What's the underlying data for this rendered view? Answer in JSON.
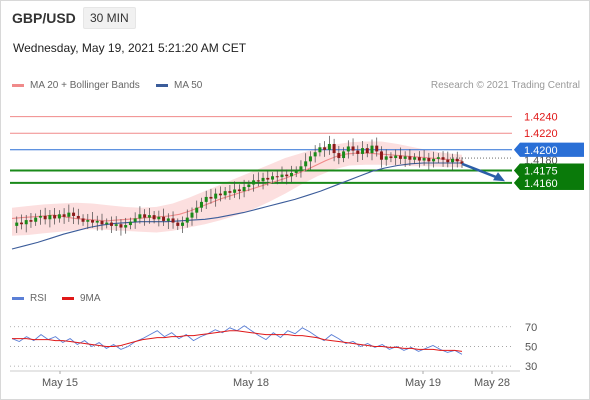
{
  "header": {
    "symbol": "GBP/USD",
    "timeframe": "30 MIN",
    "datetime": "Wednesday, May 19, 2021 5:21:20 AM CET"
  },
  "legend": {
    "main": [
      {
        "name": "MA 20 + Bollinger Bands",
        "color": "#f08a8a"
      },
      {
        "name": "MA 50",
        "color": "#3b5c9a"
      }
    ],
    "rsi": [
      {
        "name": "RSI",
        "color": "#5b7fd6"
      },
      {
        "name": "9MA",
        "color": "#e01818"
      }
    ]
  },
  "copyright": "Research © 2021 Trading Central",
  "colors": {
    "resistance": "#f08a8a",
    "resistance_text": "#e01818",
    "pivot": "#2a6fd6",
    "support": "#1a8a1a",
    "support_label_bg": "#0a7a0a",
    "arrow": "#2b5ea8",
    "candle_up": "#1a8a1a",
    "candle_down": "#8b1a1a",
    "bb_fill": "#fbd9d9"
  },
  "chart_data": [
    {
      "type": "candlestick",
      "ylim": [
        1.4045,
        1.4265
      ],
      "x_labels": [
        "May 15",
        "May 18",
        "May 19",
        "May 28"
      ],
      "levels": [
        {
          "value": 1.424,
          "label": "1.4240",
          "kind": "resistance"
        },
        {
          "value": 1.422,
          "label": "1.4220",
          "kind": "resistance"
        },
        {
          "value": 1.42,
          "label": "1.4200",
          "kind": "pivot"
        },
        {
          "value": 1.4175,
          "label": "1.4175",
          "kind": "support"
        },
        {
          "value": 1.416,
          "label": "1.4160",
          "kind": "support"
        }
      ],
      "overlapping_label": "1.4180",
      "price_path": [
        1.4108,
        1.4112,
        1.411,
        1.4115,
        1.4113,
        1.4118,
        1.412,
        1.4116,
        1.4121,
        1.4117,
        1.4122,
        1.4119,
        1.4124,
        1.412,
        1.4117,
        1.4113,
        1.4115,
        1.4112,
        1.4114,
        1.411,
        1.4112,
        1.4108,
        1.411,
        1.4106,
        1.4109,
        1.4113,
        1.4117,
        1.4122,
        1.4118,
        1.4121,
        1.4116,
        1.4119,
        1.4114,
        1.4117,
        1.4112,
        1.4108,
        1.4112,
        1.4118,
        1.4124,
        1.413,
        1.4137,
        1.4143,
        1.4141,
        1.4147,
        1.4145,
        1.415,
        1.4148,
        1.4152,
        1.415,
        1.4155,
        1.4158,
        1.4163,
        1.4162,
        1.4166,
        1.4164,
        1.4168,
        1.4167,
        1.417,
        1.4168,
        1.4172,
        1.4175,
        1.418,
        1.4186,
        1.4192,
        1.4197,
        1.4203,
        1.42,
        1.4207,
        1.4196,
        1.419,
        1.4198,
        1.4204,
        1.4199,
        1.4195,
        1.4202,
        1.4196,
        1.4205,
        1.4198,
        1.4188,
        1.4192,
        1.419,
        1.4193,
        1.4189,
        1.4192,
        1.4188,
        1.4191,
        1.4187,
        1.419,
        1.4186,
        1.4189,
        1.4191,
        1.4188,
        1.4185,
        1.4189,
        1.4186,
        1.4183
      ],
      "ma20": [
        1.4117,
        1.4118,
        1.4119,
        1.412,
        1.4121,
        1.4119,
        1.4117,
        1.4116,
        1.4115,
        1.4114,
        1.4115,
        1.4116,
        1.4117,
        1.4118,
        1.4119,
        1.412,
        1.4122,
        1.4126,
        1.4131,
        1.4136,
        1.4141,
        1.4145,
        1.4149,
        1.4153,
        1.4157,
        1.4161,
        1.4165,
        1.417,
        1.4175,
        1.4181,
        1.4187,
        1.4192,
        1.4195,
        1.4196,
        1.4196,
        1.4195,
        1.4194,
        1.4193,
        1.4192,
        1.4191,
        1.419,
        1.4189,
        1.4188,
        1.4187
      ],
      "ma50": [
        1.408,
        1.4084,
        1.4088,
        1.4093,
        1.4098,
        1.4102,
        1.4106,
        1.4109,
        1.4111,
        1.4112,
        1.4113,
        1.4113,
        1.4113,
        1.4114,
        1.4115,
        1.4116,
        1.4118,
        1.4121,
        1.4124,
        1.4128,
        1.4132,
        1.4136,
        1.414,
        1.4145,
        1.415,
        1.4156,
        1.4162,
        1.4168,
        1.4174,
        1.4178,
        1.4181,
        1.4183,
        1.4184,
        1.4184,
        1.4184,
        1.4184
      ],
      "bb_upper": [
        1.413,
        1.4132,
        1.4134,
        1.4135,
        1.4136,
        1.4135,
        1.4133,
        1.4131,
        1.413,
        1.4131,
        1.4135,
        1.4142,
        1.415,
        1.4158,
        1.4166,
        1.4174,
        1.4182,
        1.419,
        1.4196,
        1.4202,
        1.4206,
        1.4209,
        1.421,
        1.421,
        1.4207,
        1.4203,
        1.4199,
        1.4196,
        1.4194
      ],
      "bb_lower": [
        1.4096,
        1.4097,
        1.4099,
        1.4101,
        1.4103,
        1.4104,
        1.4103,
        1.4102,
        1.4101,
        1.41,
        1.4102,
        1.4106,
        1.411,
        1.4115,
        1.4121,
        1.4128,
        1.4137,
        1.4147,
        1.4158,
        1.4168,
        1.4176,
        1.4181,
        1.4182,
        1.4182,
        1.4181,
        1.418,
        1.418,
        1.4179,
        1.4179
      ],
      "forecast_arrow": {
        "from": 1.4183,
        "to": 1.4162
      }
    },
    {
      "type": "line",
      "name": "RSI",
      "ylim": [
        20,
        85
      ],
      "y_ticks": [
        70,
        50,
        30
      ],
      "rsi": [
        58,
        55,
        60,
        56,
        62,
        57,
        60,
        54,
        58,
        52,
        56,
        50,
        54,
        48,
        52,
        47,
        50,
        55,
        58,
        62,
        66,
        60,
        64,
        58,
        62,
        56,
        60,
        63,
        67,
        64,
        69,
        66,
        71,
        66,
        61,
        57,
        64,
        59,
        66,
        63,
        69,
        65,
        60,
        56,
        62,
        58,
        53,
        55,
        50,
        53,
        49,
        52,
        47,
        50,
        46,
        49,
        45,
        48,
        51,
        47,
        44,
        46,
        42
      ],
      "ma9": [
        58,
        58,
        58,
        57,
        57,
        57,
        56,
        56,
        55,
        54,
        53,
        52,
        51,
        50,
        50,
        51,
        53,
        55,
        57,
        58,
        59,
        59,
        60,
        60,
        61,
        61,
        62,
        63,
        64,
        65,
        66,
        66,
        65,
        64,
        63,
        62,
        62,
        62,
        62,
        61,
        61,
        60,
        59,
        57,
        56,
        55,
        54,
        53,
        52,
        51,
        50,
        50,
        49,
        49,
        48,
        48,
        47,
        47,
        47,
        46,
        46,
        46,
        45
      ]
    }
  ]
}
